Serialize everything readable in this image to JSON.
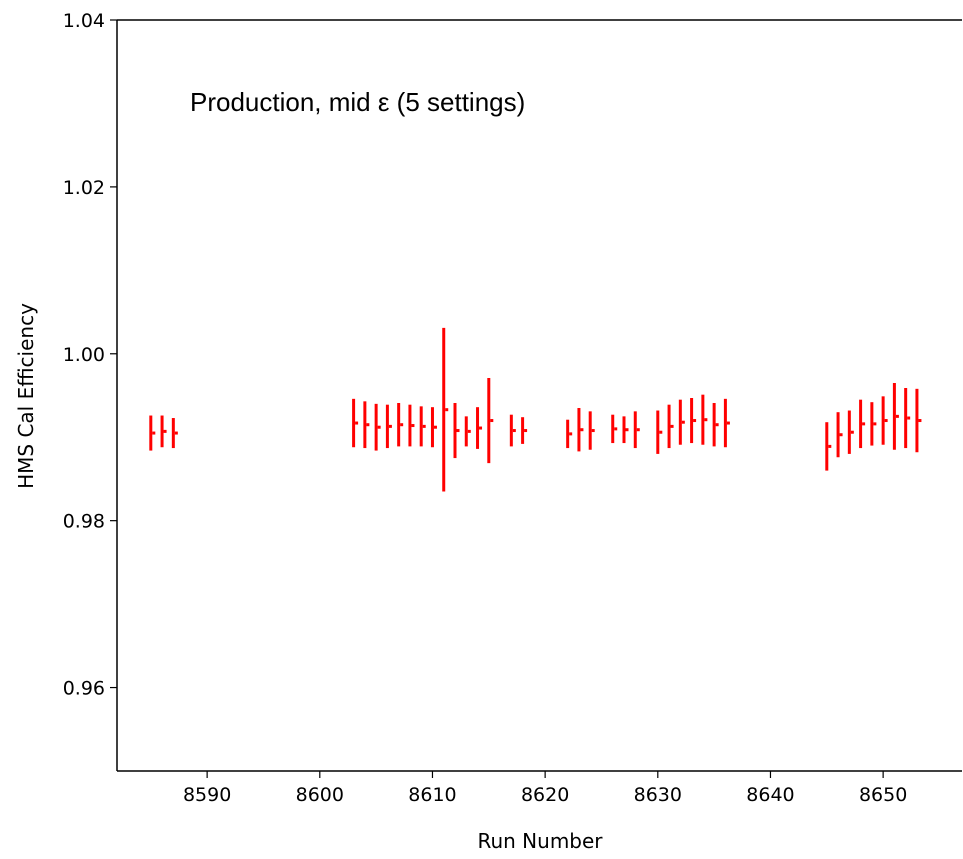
{
  "chart_data": {
    "type": "scatter",
    "title": "",
    "annotation": "Production, mid ε (5 settings)",
    "xlabel": "Run Number",
    "ylabel": "HMS Cal Efficiency",
    "xlim": [
      8582,
      8657
    ],
    "ylim": [
      0.95,
      1.04
    ],
    "xticks": [
      "8590",
      "8600",
      "8610",
      "8620",
      "8630",
      "8640",
      "8650"
    ],
    "yticks": [
      "0.96",
      "0.98",
      "1.00",
      "1.02",
      "1.04"
    ],
    "grid": false,
    "color": "#ff0000",
    "series": [
      {
        "points": [
          {
            "x": 8585,
            "y": 0.9905,
            "err": 0.0021
          },
          {
            "x": 8586,
            "y": 0.9907,
            "err": 0.0019
          },
          {
            "x": 8587,
            "y": 0.9905,
            "err": 0.0018
          },
          {
            "x": 8603,
            "y": 0.9917,
            "err": 0.0029
          },
          {
            "x": 8604,
            "y": 0.9915,
            "err": 0.0028
          },
          {
            "x": 8605,
            "y": 0.9912,
            "err": 0.0028
          },
          {
            "x": 8606,
            "y": 0.9913,
            "err": 0.0026
          },
          {
            "x": 8607,
            "y": 0.9915,
            "err": 0.0026
          },
          {
            "x": 8608,
            "y": 0.9914,
            "err": 0.0025
          },
          {
            "x": 8609,
            "y": 0.9913,
            "err": 0.0024
          },
          {
            "x": 8610,
            "y": 0.9912,
            "err": 0.0024
          },
          {
            "x": 8611,
            "y": 0.9933,
            "err": 0.0098
          },
          {
            "x": 8612,
            "y": 0.9908,
            "err": 0.0033
          },
          {
            "x": 8613,
            "y": 0.9907,
            "err": 0.0018
          },
          {
            "x": 8614,
            "y": 0.9911,
            "err": 0.0025
          },
          {
            "x": 8615,
            "y": 0.992,
            "err": 0.0051
          },
          {
            "x": 8617,
            "y": 0.9908,
            "err": 0.0019
          },
          {
            "x": 8618,
            "y": 0.9908,
            "err": 0.0016
          },
          {
            "x": 8622,
            "y": 0.9904,
            "err": 0.0017
          },
          {
            "x": 8623,
            "y": 0.9909,
            "err": 0.0026
          },
          {
            "x": 8624,
            "y": 0.9908,
            "err": 0.0023
          },
          {
            "x": 8626,
            "y": 0.991,
            "err": 0.0017
          },
          {
            "x": 8627,
            "y": 0.9909,
            "err": 0.0016
          },
          {
            "x": 8628,
            "y": 0.9909,
            "err": 0.0022
          },
          {
            "x": 8630,
            "y": 0.9906,
            "err": 0.0026
          },
          {
            "x": 8631,
            "y": 0.9913,
            "err": 0.0026
          },
          {
            "x": 8632,
            "y": 0.9918,
            "err": 0.0027
          },
          {
            "x": 8633,
            "y": 0.992,
            "err": 0.0027
          },
          {
            "x": 8634,
            "y": 0.9921,
            "err": 0.003
          },
          {
            "x": 8635,
            "y": 0.9915,
            "err": 0.0026
          },
          {
            "x": 8636,
            "y": 0.9917,
            "err": 0.0029
          },
          {
            "x": 8645,
            "y": 0.9889,
            "err": 0.0029
          },
          {
            "x": 8646,
            "y": 0.9903,
            "err": 0.0027
          },
          {
            "x": 8647,
            "y": 0.9906,
            "err": 0.0026
          },
          {
            "x": 8648,
            "y": 0.9916,
            "err": 0.0029
          },
          {
            "x": 8649,
            "y": 0.9916,
            "err": 0.0026
          },
          {
            "x": 8650,
            "y": 0.992,
            "err": 0.0029
          },
          {
            "x": 8651,
            "y": 0.9925,
            "err": 0.004
          },
          {
            "x": 8652,
            "y": 0.9923,
            "err": 0.0036
          },
          {
            "x": 8653,
            "y": 0.992,
            "err": 0.0038
          }
        ]
      }
    ]
  }
}
